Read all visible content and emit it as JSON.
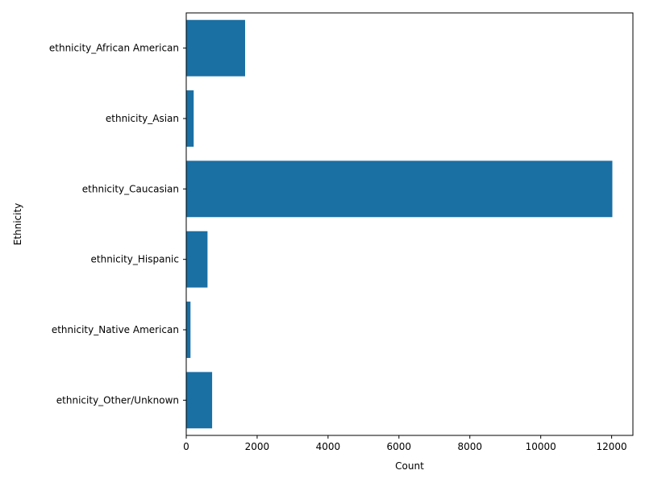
{
  "chart_data": {
    "type": "bar",
    "orientation": "horizontal",
    "categories": [
      "ethnicity_African American",
      "ethnicity_Asian",
      "ethnicity_Caucasian",
      "ethnicity_Hispanic",
      "ethnicity_Native American",
      "ethnicity_Other/Unknown"
    ],
    "values": [
      1660,
      210,
      12020,
      600,
      120,
      730
    ],
    "xlabel": "Count",
    "ylabel": "Ethnicity",
    "xlim": [
      0,
      12600
    ],
    "xticks": [
      0,
      2000,
      4000,
      6000,
      8000,
      10000,
      12000
    ],
    "grid": false,
    "bar_color": "#1a6fa3"
  }
}
